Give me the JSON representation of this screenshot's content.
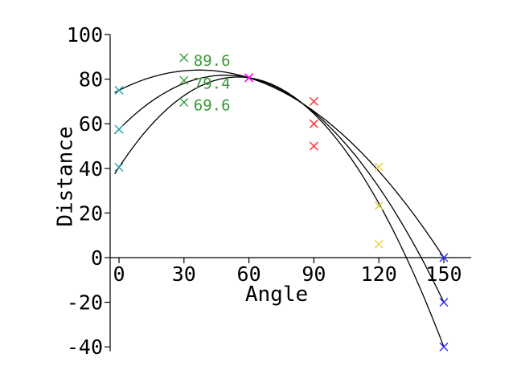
{
  "chart_data": {
    "type": "line",
    "xlabel": "Angle",
    "ylabel": "Distance",
    "xlim": [
      -5,
      153
    ],
    "ylim": [
      -42,
      100
    ],
    "x_ticks": [
      0,
      30,
      60,
      90,
      120,
      150
    ],
    "y_ticks": [
      -40,
      -20,
      0,
      20,
      40,
      60,
      80,
      100
    ],
    "x_tick_labels": [
      "0",
      "30",
      "60",
      "90",
      "120",
      "150"
    ],
    "y_tick_labels": [
      "-40",
      "-20",
      "0",
      "20",
      "40",
      "60",
      "80",
      "100"
    ],
    "grid": false,
    "curve_color": "#000000",
    "series": [
      {
        "points": [
          {
            "x": 0,
            "y": 75,
            "color": "#20a0a0"
          },
          {
            "x": 30,
            "y": 89.6,
            "color": "#3a9a3a"
          },
          {
            "x": 60,
            "y": 80.6,
            "color": "#ff00ff"
          },
          {
            "x": 90,
            "y": 70,
            "color": "#ff2a2a"
          },
          {
            "x": 120,
            "y": 40.6,
            "color": "#e8d040"
          },
          {
            "x": 150,
            "y": 0,
            "color": "#2a2aff"
          }
        ]
      },
      {
        "points": [
          {
            "x": 0,
            "y": 57.5,
            "color": "#20a0a0"
          },
          {
            "x": 30,
            "y": 79.4,
            "color": "#3a9a3a"
          },
          {
            "x": 60,
            "y": 80.6,
            "color": "#ff00ff"
          },
          {
            "x": 90,
            "y": 60,
            "color": "#ff2a2a"
          },
          {
            "x": 120,
            "y": 23.3,
            "color": "#e8d040"
          },
          {
            "x": 150,
            "y": -20,
            "color": "#2a2aff"
          }
        ]
      },
      {
        "points": [
          {
            "x": 0,
            "y": 40.5,
            "color": "#20a0a0"
          },
          {
            "x": 30,
            "y": 69.6,
            "color": "#3a9a3a"
          },
          {
            "x": 60,
            "y": 80.6,
            "color": "#ff00ff"
          },
          {
            "x": 90,
            "y": 50,
            "color": "#ff2a2a"
          },
          {
            "x": 120,
            "y": 6.0,
            "color": "#e8d040"
          },
          {
            "x": 150,
            "y": -40,
            "color": "#2a2aff"
          }
        ]
      }
    ],
    "annotations": [
      {
        "text": "89.6",
        "x": 30,
        "y": 89.6,
        "color": "#3a9a3a"
      },
      {
        "text": "79.4",
        "x": 30,
        "y": 79.4,
        "color": "#3a9a3a"
      },
      {
        "text": "69.6",
        "x": 30,
        "y": 69.6,
        "color": "#3a9a3a"
      }
    ]
  }
}
